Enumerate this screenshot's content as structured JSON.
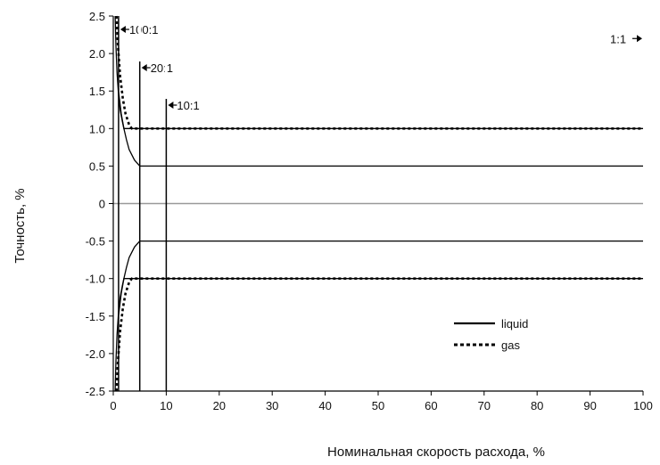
{
  "chart_data": {
    "type": "line",
    "title": "",
    "xlabel": "Номинальная скорость расхода, %",
    "ylabel": "Точность, %",
    "xlim": [
      0,
      100
    ],
    "ylim": [
      -2.5,
      2.5
    ],
    "x_ticks": [
      "0",
      "10",
      "20",
      "30",
      "40",
      "50",
      "60",
      "70",
      "80",
      "90",
      "100"
    ],
    "y_ticks": [
      "2.5",
      "2.0",
      "1.5",
      "1.0",
      "0.5",
      "0",
      "-0.5",
      "-1.0",
      "-1.5",
      "-2.0",
      "-2.5"
    ],
    "grid": false,
    "legend_position": "bottom-right",
    "series": [
      {
        "name": "liquid",
        "style": "solid",
        "curves": [
          [
            [
              0.35,
              2.5
            ],
            [
              0.5,
              2.1
            ],
            [
              0.7,
              1.75
            ],
            [
              1,
              1.45
            ],
            [
              1.3,
              1.25
            ],
            [
              1.7,
              1.1
            ],
            [
              2,
              1.0
            ],
            [
              100,
              1.0
            ]
          ],
          [
            [
              0.35,
              -2.5
            ],
            [
              0.5,
              -2.1
            ],
            [
              0.7,
              -1.75
            ],
            [
              1,
              -1.45
            ],
            [
              1.3,
              -1.25
            ],
            [
              1.7,
              -1.1
            ],
            [
              2,
              -1.0
            ],
            [
              100,
              -1.0
            ]
          ],
          [
            [
              1,
              1.5
            ],
            [
              1.5,
              1.2
            ],
            [
              2,
              1.0
            ],
            [
              2.5,
              0.85
            ],
            [
              3,
              0.72
            ],
            [
              4,
              0.58
            ],
            [
              5,
              0.5
            ],
            [
              100,
              0.5
            ]
          ],
          [
            [
              1,
              -1.5
            ],
            [
              1.5,
              -1.2
            ],
            [
              2,
              -1.0
            ],
            [
              2.5,
              -0.85
            ],
            [
              3,
              -0.72
            ],
            [
              4,
              -0.58
            ],
            [
              5,
              -0.5
            ],
            [
              100,
              -0.5
            ]
          ]
        ]
      },
      {
        "name": "gas",
        "style": "dotted",
        "curves": [
          [
            [
              0.6,
              2.5
            ],
            [
              0.9,
              2.1
            ],
            [
              1.3,
              1.7
            ],
            [
              1.8,
              1.4
            ],
            [
              2.3,
              1.2
            ],
            [
              3,
              1.05
            ],
            [
              3.5,
              1.0
            ],
            [
              100,
              1.0
            ]
          ],
          [
            [
              0.6,
              -2.5
            ],
            [
              0.9,
              -2.1
            ],
            [
              1.3,
              -1.7
            ],
            [
              1.8,
              -1.4
            ],
            [
              2.3,
              -1.2
            ],
            [
              3,
              -1.05
            ],
            [
              3.5,
              -1.0
            ],
            [
              100,
              -1.0
            ]
          ]
        ]
      }
    ],
    "vertical_markers": [
      {
        "x": 1,
        "label": "100:1"
      },
      {
        "x": 5,
        "label": "20:1"
      },
      {
        "x": 10,
        "label": "10:1"
      }
    ],
    "annotations": [
      {
        "label": "1:1",
        "x": 100,
        "y": 2.2
      }
    ]
  }
}
